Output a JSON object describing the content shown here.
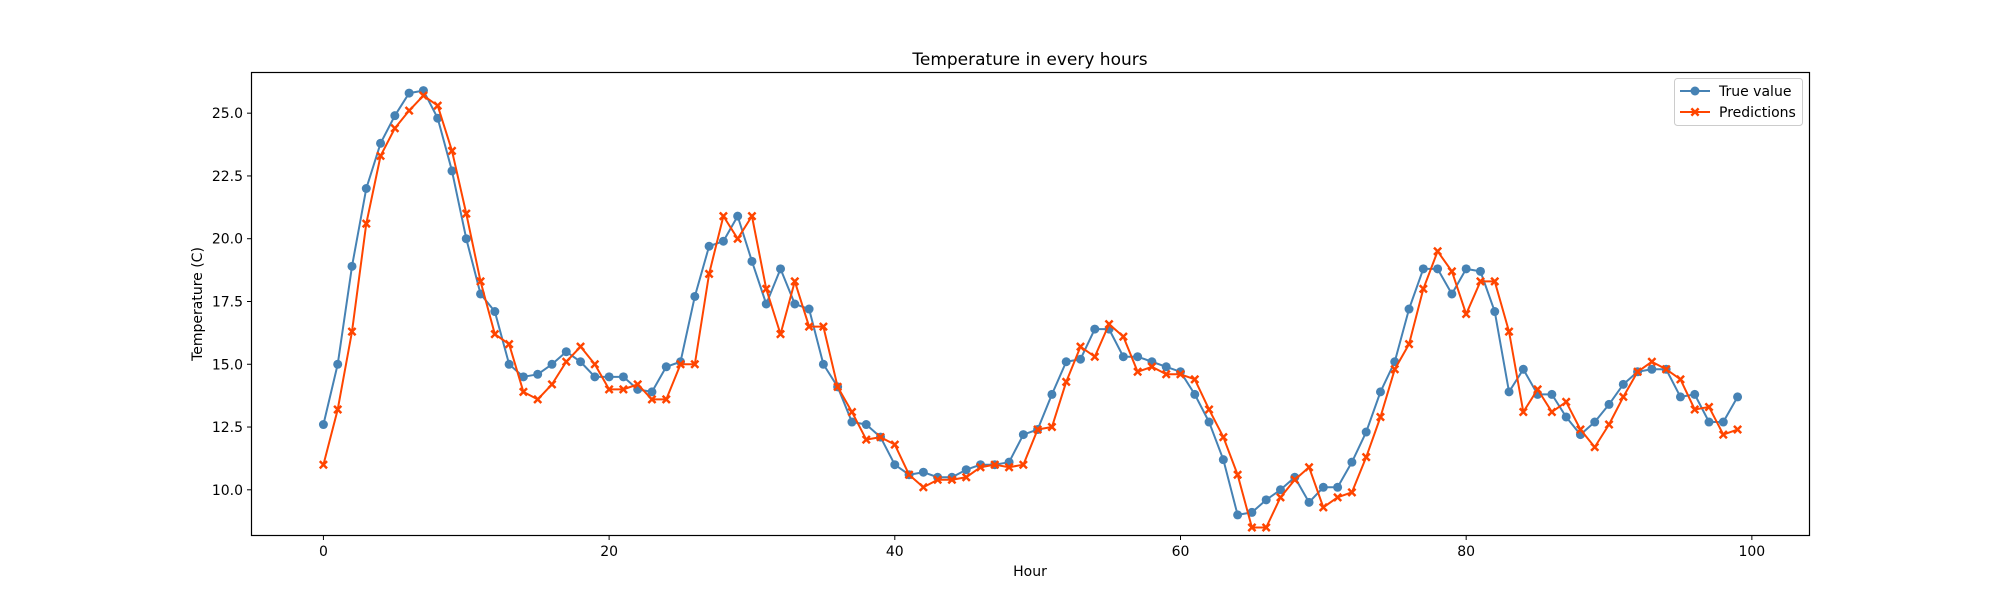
{
  "chart_data": {
    "type": "line",
    "title": "Temperature in every hours",
    "xlabel": "Hour",
    "ylabel": "Temperature (C)",
    "xlim": [
      -5,
      104
    ],
    "ylim": [
      8.2,
      26.6
    ],
    "xticks": [
      0,
      20,
      40,
      60,
      80,
      100
    ],
    "yticks": [
      10.0,
      12.5,
      15.0,
      17.5,
      20.0,
      22.5,
      25.0
    ],
    "xtick_labels": [
      "0",
      "20",
      "40",
      "60",
      "80",
      "100"
    ],
    "ytick_labels": [
      "10.0",
      "12.5",
      "15.0",
      "17.5",
      "20.0",
      "22.5",
      "25.0"
    ],
    "grid": false,
    "legend_position": "top-right",
    "series": [
      {
        "name": "True value",
        "color": "#4682b4",
        "marker": "circle",
        "values": [
          12.6,
          15.0,
          18.9,
          22.0,
          23.8,
          24.9,
          25.8,
          25.9,
          24.8,
          22.7,
          20.0,
          17.8,
          17.1,
          15.0,
          14.5,
          14.6,
          15.0,
          15.5,
          15.1,
          14.5,
          14.5,
          14.5,
          14.0,
          13.9,
          14.9,
          15.1,
          17.7,
          19.7,
          19.9,
          20.9,
          19.1,
          17.4,
          18.8,
          17.4,
          17.2,
          15.0,
          14.1,
          12.7,
          12.6,
          12.1,
          11.0,
          10.6,
          10.7,
          10.5,
          10.5,
          10.8,
          11.0,
          11.0,
          11.1,
          12.2,
          12.4,
          13.8,
          15.1,
          15.2,
          16.4,
          16.4,
          15.3,
          15.3,
          15.1,
          14.9,
          14.7,
          13.8,
          12.7,
          11.2,
          9.0,
          9.1,
          9.6,
          10.0,
          10.5,
          9.5,
          10.1,
          10.1,
          11.1,
          12.3,
          13.9,
          15.1,
          17.2,
          18.8,
          18.8,
          17.8,
          18.8,
          18.7,
          17.1,
          13.9,
          14.8,
          13.8,
          13.8,
          12.9,
          12.2,
          12.7,
          13.4,
          14.2,
          14.7,
          14.8,
          14.8,
          13.7,
          13.8,
          12.7,
          12.7,
          13.7
        ]
      },
      {
        "name": "Predictions",
        "color": "#ff4500",
        "marker": "x",
        "values": [
          11.0,
          13.2,
          16.3,
          20.6,
          23.3,
          24.4,
          25.1,
          25.7,
          25.3,
          23.5,
          21.0,
          18.3,
          16.2,
          15.8,
          13.9,
          13.6,
          14.2,
          15.1,
          15.7,
          15.0,
          14.0,
          14.0,
          14.2,
          13.6,
          13.6,
          15.0,
          15.0,
          18.6,
          20.9,
          20.0,
          20.9,
          18.0,
          16.2,
          18.3,
          16.5,
          16.5,
          14.1,
          13.1,
          12.0,
          12.1,
          11.8,
          10.6,
          10.1,
          10.4,
          10.4,
          10.5,
          10.9,
          11.0,
          10.9,
          11.0,
          12.4,
          12.5,
          14.3,
          15.7,
          15.3,
          16.6,
          16.1,
          14.7,
          14.9,
          14.6,
          14.6,
          14.4,
          13.2,
          12.1,
          10.6,
          8.5,
          8.5,
          9.7,
          10.4,
          10.9,
          9.3,
          9.7,
          9.9,
          11.3,
          12.9,
          14.8,
          15.8,
          18.0,
          19.5,
          18.7,
          17.0,
          18.3,
          18.3,
          16.3,
          13.1,
          14.0,
          13.1,
          13.5,
          12.4,
          11.7,
          12.6,
          13.7,
          14.7,
          15.1,
          14.8,
          14.4,
          13.2,
          13.3,
          12.2,
          12.4
        ]
      }
    ]
  }
}
